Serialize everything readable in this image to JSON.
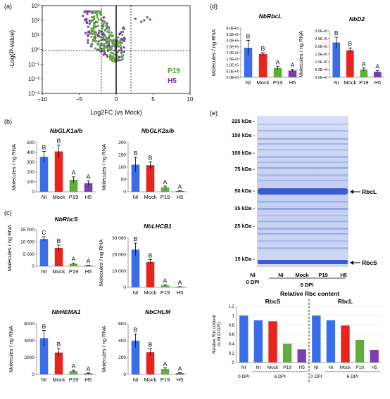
{
  "colors": {
    "NI": "#3a6ee8",
    "Mock": "#e8251c",
    "P19": "#5fae3c",
    "H5": "#7b3fb0",
    "P19_label": "#5aa02c",
    "H5_label": "#7a2fa8",
    "gel_bg": "#c9d4f0",
    "gel_band": "#2d4fcf"
  },
  "panel_labels": {
    "a": "(a)",
    "b": "(b)",
    "c": "(c)",
    "d": "(d)",
    "e": "(e)"
  },
  "volcano": {
    "ylabel_pre": "-Log(",
    "ylabel_ital": "P",
    "ylabel_post": "-value)",
    "xlabel": "Log2FC (vs Mock)",
    "yticks": [
      "10³",
      "10²",
      "10¹",
      "10⁰",
      "10⁻¹",
      "10⁻²",
      "10⁻³"
    ],
    "xticks": [
      "−10",
      "−5",
      "0",
      "5",
      "10"
    ],
    "xlim": [
      -10,
      10
    ],
    "ylim_log10": [
      -3,
      3
    ],
    "hlines_log10": [
      0
    ],
    "vlines": [
      -2,
      2
    ],
    "legend": [
      "P19",
      "H5"
    ]
  },
  "bar_xlabels": [
    "NI",
    "Mock",
    "P19",
    "H5"
  ],
  "ylabel_rna": "Molecules / ng RNA",
  "chart_data": [
    {
      "id": "glk1",
      "type": "bar",
      "title": "NbGLK1a/b",
      "categories": [
        "NI",
        "Mock",
        "P19",
        "H5"
      ],
      "values": [
        355,
        410,
        122,
        87
      ],
      "errors": [
        55,
        65,
        30,
        22
      ],
      "letters": [
        "B",
        "B",
        "A",
        "A"
      ],
      "ylim": [
        0,
        500
      ],
      "yticks": [
        0,
        100,
        200,
        300,
        400,
        500
      ],
      "yticklabels": [
        "0",
        "100",
        "200",
        "300",
        "400",
        "500"
      ]
    },
    {
      "id": "glk2",
      "type": "bar",
      "title": "NbGLK2a/b",
      "categories": [
        "NI",
        "Mock",
        "P19",
        "H5"
      ],
      "values": [
        110,
        108,
        18,
        3
      ],
      "errors": [
        30,
        14,
        5,
        2
      ],
      "letters": [
        "B",
        "B",
        "A",
        "A"
      ],
      "ylim": [
        0,
        200
      ],
      "yticks": [
        0,
        50,
        100,
        150,
        200
      ],
      "yticklabels": [
        "0",
        "50",
        "100",
        "150",
        "200"
      ]
    },
    {
      "id": "rbcs",
      "type": "bar",
      "title": "NbRbcS",
      "categories": [
        "NI",
        "Mock",
        "P19",
        "H5"
      ],
      "values": [
        11200,
        7500,
        1000,
        300
      ],
      "errors": [
        900,
        1200,
        250,
        100
      ],
      "letters": [
        "C",
        "B",
        "A",
        "A"
      ],
      "ylim": [
        0,
        15000
      ],
      "yticks": [
        0,
        5000,
        10000,
        15000
      ],
      "yticklabels": [
        "0",
        "5 000",
        "10 000",
        "15 000"
      ]
    },
    {
      "id": "lhcb1",
      "type": "bar",
      "title": "NbLHCB1",
      "categories": [
        "NI",
        "Mock",
        "P19",
        "H5"
      ],
      "values": [
        23000,
        15500,
        1200,
        300
      ],
      "errors": [
        4000,
        1500,
        300,
        100
      ],
      "letters": [
        "B",
        "B",
        "A",
        "A"
      ],
      "ylim": [
        0,
        30000
      ],
      "yticks": [
        0,
        10000,
        20000,
        30000
      ],
      "yticklabels": [
        "0",
        "10 000",
        "20 000",
        "30 000"
      ]
    },
    {
      "id": "hema1",
      "type": "bar",
      "title": "NbHEMA1",
      "categories": [
        "NI",
        "Mock",
        "P19",
        "H5"
      ],
      "values": [
        4300,
        2600,
        400,
        130
      ],
      "errors": [
        900,
        500,
        100,
        50
      ],
      "letters": [
        "B",
        "B",
        "A",
        "A"
      ],
      "ylim": [
        0,
        6000
      ],
      "yticks": [
        0,
        2000,
        4000,
        6000
      ],
      "yticklabels": [
        "0",
        "2000",
        "4000",
        "6000"
      ]
    },
    {
      "id": "chlm",
      "type": "bar",
      "title": "NbCHLM",
      "categories": [
        "NI",
        "Mock",
        "P19",
        "H5"
      ],
      "values": [
        400,
        265,
        65,
        15
      ],
      "errors": [
        80,
        40,
        12,
        5
      ],
      "letters": [
        "B",
        "B",
        "A",
        "A"
      ],
      "ylim": [
        0,
        600
      ],
      "yticks": [
        0,
        200,
        400,
        600
      ],
      "yticklabels": [
        "0",
        "200",
        "400",
        "600"
      ]
    },
    {
      "id": "rbcl",
      "type": "bar",
      "title": "NbRbcL",
      "categories": [
        "NI",
        "Mock",
        "P19",
        "H5"
      ],
      "values": [
        240000,
        190000,
        75000,
        55000
      ],
      "errors": [
        60000,
        10000,
        15000,
        10000
      ],
      "letters": [
        "B",
        "B",
        "A",
        "A"
      ],
      "ylim": [
        0,
        400000
      ],
      "yticks": [
        0,
        50000,
        100000,
        150000,
        200000,
        250000,
        300000,
        350000,
        400000
      ],
      "yticklabels": [
        "0.0E+0",
        "5.0E+4",
        "1.0E+5",
        "1.5E+5",
        "2.0E+5",
        "2.5E+5",
        "3.0E+5",
        "3.5E+5",
        "4.0E+5"
      ]
    },
    {
      "id": "nbd2",
      "type": "bar",
      "title": "NbD2",
      "categories": [
        "NI",
        "Mock",
        "P19",
        "H5"
      ],
      "values": [
        225000,
        175000,
        50000,
        35000
      ],
      "errors": [
        35000,
        15000,
        10000,
        8000
      ],
      "letters": [
        "B",
        "B",
        "A",
        "A"
      ],
      "ylim": [
        0,
        300000
      ],
      "yticks": [
        0,
        50000,
        100000,
        150000,
        200000,
        250000,
        300000
      ],
      "yticklabels": [
        "0.0E+0",
        "5.0E+4",
        "1.0E+5",
        "1.5E+5",
        "2.0E+5",
        "2.5E+5",
        "3.0E+5"
      ]
    },
    {
      "id": "relrbc",
      "type": "bar",
      "title": "Relative Rbc content",
      "ylabel": "Relative Rbc content vs NI (0 DPI)",
      "groups": [
        {
          "name": "RbcS",
          "categories": [
            "NI",
            "NI",
            "Mock",
            "P19",
            "H5"
          ],
          "values": [
            1.0,
            0.9,
            0.88,
            0.4,
            0.28
          ]
        },
        {
          "name": "RbcL",
          "categories": [
            "NI",
            "NI",
            "Mock",
            "P19",
            "H5"
          ],
          "values": [
            1.0,
            0.9,
            0.79,
            0.48,
            0.27
          ]
        }
      ],
      "ylim": [
        0,
        1.2
      ],
      "yticks": [
        0,
        0.2,
        0.4,
        0.6,
        0.8,
        1.0,
        1.2
      ],
      "yticklabels": [
        "0",
        "0.2",
        "0.4",
        "0.6",
        "0.8",
        "1",
        "1.2"
      ],
      "dpi_labels": [
        "0 DPI",
        "6 DPI"
      ]
    }
  ],
  "gel": {
    "markers": [
      "225 kDa -",
      "150 kDa -",
      "100 kDa -",
      "75 kDa -",
      "50 kDa -",
      "35 kDa -",
      "25 kDa -",
      "15 kDa -"
    ],
    "lanes": [
      "NI",
      "NI",
      "Mock",
      "P19",
      "H5"
    ],
    "dpi_labels": [
      "0 DPI",
      "6 DPI"
    ],
    "bands": [
      "RbcL",
      "RbcS"
    ]
  }
}
